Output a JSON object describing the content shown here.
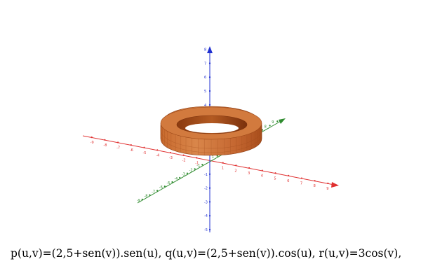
{
  "caption": "p(u,v)=(2,5+sen(v)).sen(u), q(u,v)=(2,5+sen(v)).cos(u), r(u,v)=3cos(v),",
  "colors": {
    "x_axis": "#e03030",
    "y_axis": "#2e8b2e",
    "z_axis": "#2030d0",
    "surface_light": "#d9864a",
    "surface_dark": "#8a3a10",
    "surface_edge": "#b35a22"
  },
  "axes": {
    "x_ticks": [
      "-9",
      "-8",
      "-7",
      "-6",
      "-5",
      "-4",
      "-3",
      "-2",
      "-1",
      "1",
      "2",
      "3",
      "4",
      "5",
      "6",
      "7",
      "8",
      "9"
    ],
    "y_ticks": [
      "-9",
      "-8",
      "-7",
      "-6",
      "-5",
      "-4",
      "-3",
      "-2",
      "-1",
      "1",
      "2",
      "3",
      "4",
      "5",
      "6",
      "7",
      "8",
      "9"
    ],
    "z_ticks": [
      "-5",
      "-4",
      "-3",
      "-2",
      "-1",
      "1",
      "2",
      "3",
      "4",
      "5",
      "6",
      "7",
      "8"
    ]
  },
  "surface": {
    "type": "torus",
    "name": ""
  }
}
